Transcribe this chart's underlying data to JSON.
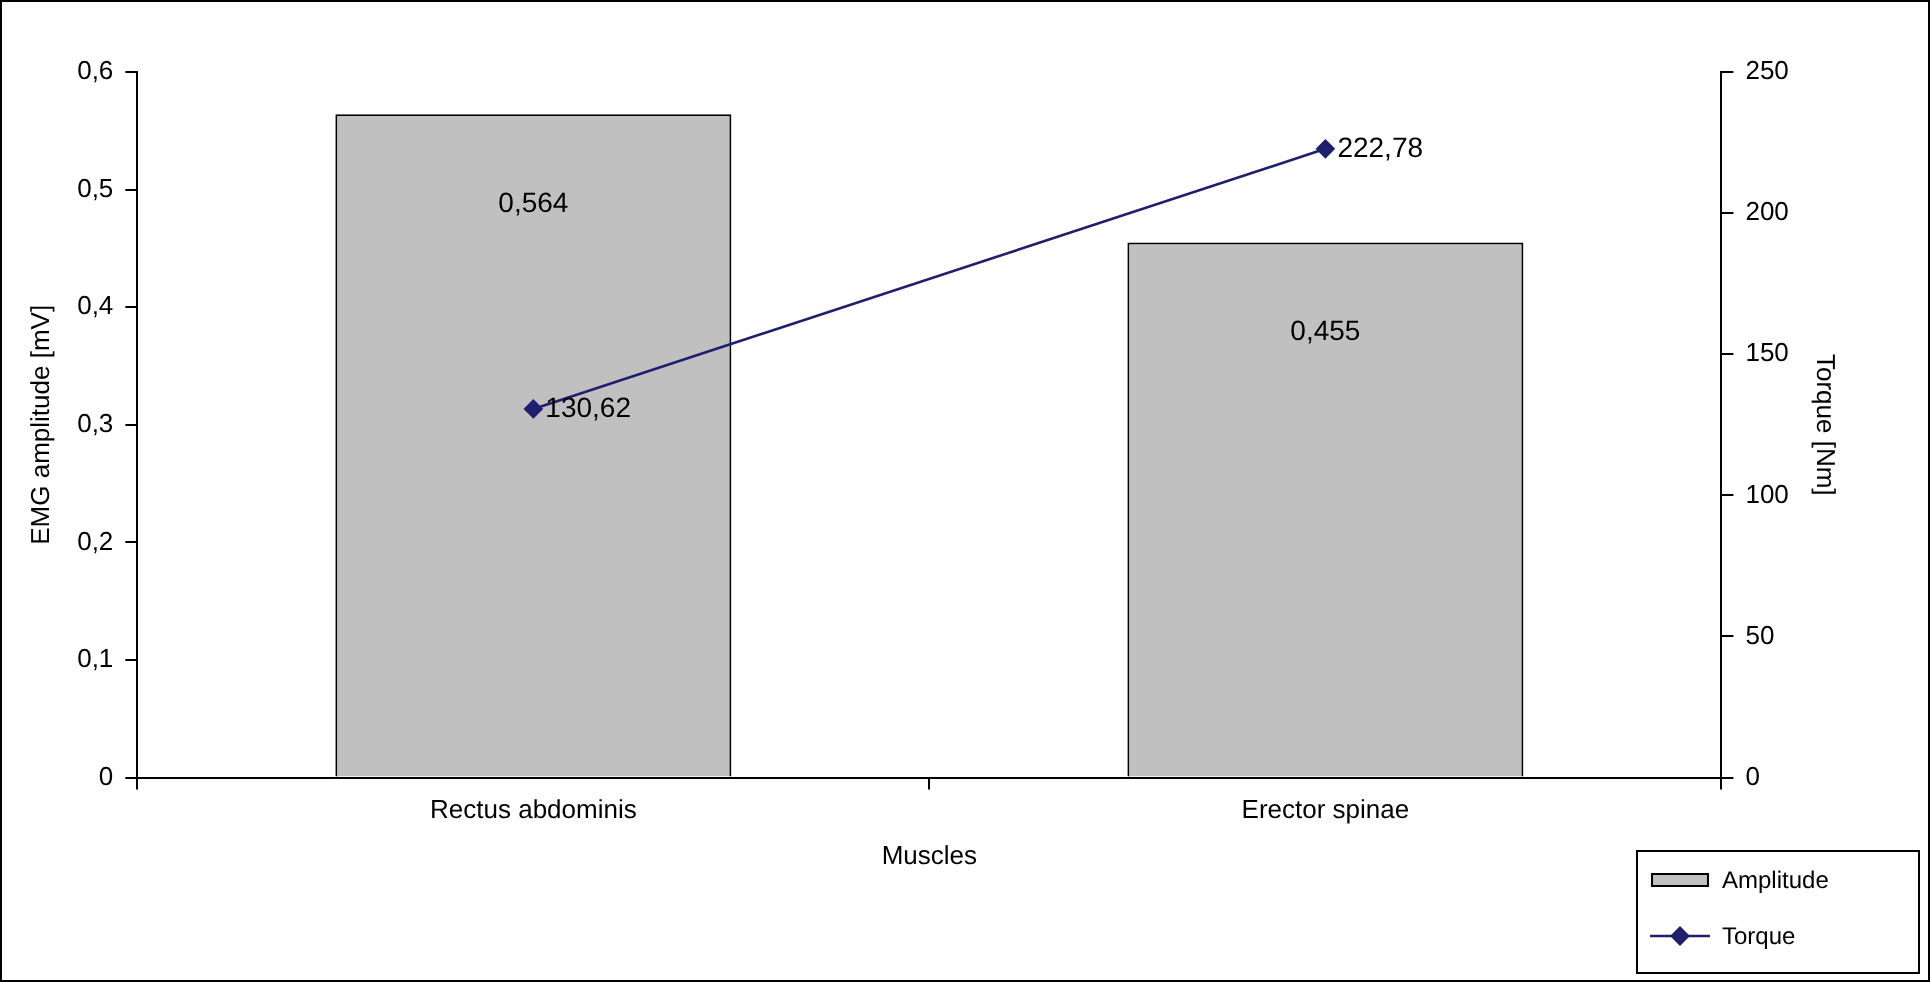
{
  "chart_data": {
    "type": "bar",
    "xlabel": "Muscles",
    "ylabel": "EMG amplitude [mV]",
    "y2label": "Torque [Nm]",
    "categories": [
      "Rectus abdominis",
      "Erector spinae"
    ],
    "series": [
      {
        "name": "Amplitude",
        "type": "bar",
        "color": "#c0c0c0",
        "values": [
          0.564,
          0.455
        ],
        "value_labels": [
          "0,564",
          "0,455"
        ]
      },
      {
        "name": "Torque",
        "type": "line",
        "axis": "y2",
        "color": "#1f1f6e",
        "values": [
          130.62,
          222.78
        ],
        "value_labels": [
          "130,62",
          "222,78"
        ]
      }
    ],
    "ylim": [
      0,
      0.6
    ],
    "yticks": [
      0,
      {
        "value": 0.1,
        "label": "0,1"
      },
      {
        "value": 0.2,
        "label": "0,2"
      },
      {
        "value": 0.3,
        "label": "0,3"
      },
      {
        "value": 0.4,
        "label": "0,4"
      },
      {
        "value": 0.5,
        "label": "0,5"
      },
      {
        "value": 0.6,
        "label": "0,6"
      }
    ],
    "y2lim": [
      0,
      250
    ],
    "y2ticks": [
      0,
      50,
      100,
      150,
      200,
      250
    ],
    "grid": false,
    "legend": "bottom right",
    "marker": "diamond",
    "line_style": "solid"
  }
}
